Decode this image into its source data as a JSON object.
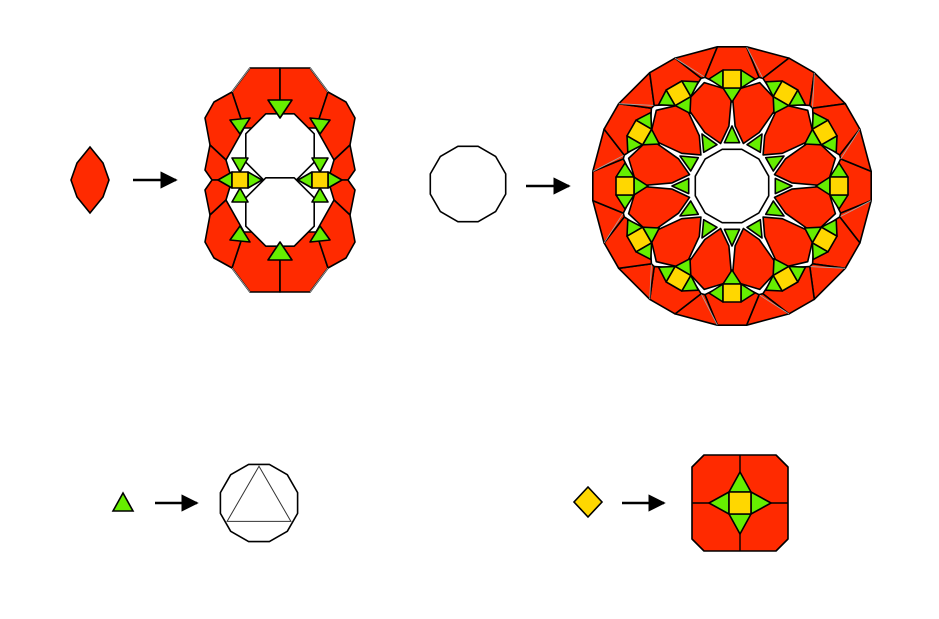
{
  "diagram": {
    "kind": "substitution-tiling-rules",
    "rules_count": 4,
    "arrow_icon": "right-arrow-icon",
    "colors": {
      "background": "#ffffff",
      "red_tile": "#ff2a00",
      "green_tile": "#66ee00",
      "yellow_tile": "#ffd700",
      "outline": "#000000",
      "guide_line": "#aaaaaa"
    },
    "rules": [
      {
        "from": "red-hexagon",
        "to": "red-double-ring"
      },
      {
        "from": "white-dodecagon",
        "to": "red-dodecagon-ring"
      },
      {
        "from": "green-triangle",
        "to": "dodecagon-with-inscribed-triangle"
      },
      {
        "from": "yellow-rhombus",
        "to": "red-square-patch"
      }
    ]
  }
}
